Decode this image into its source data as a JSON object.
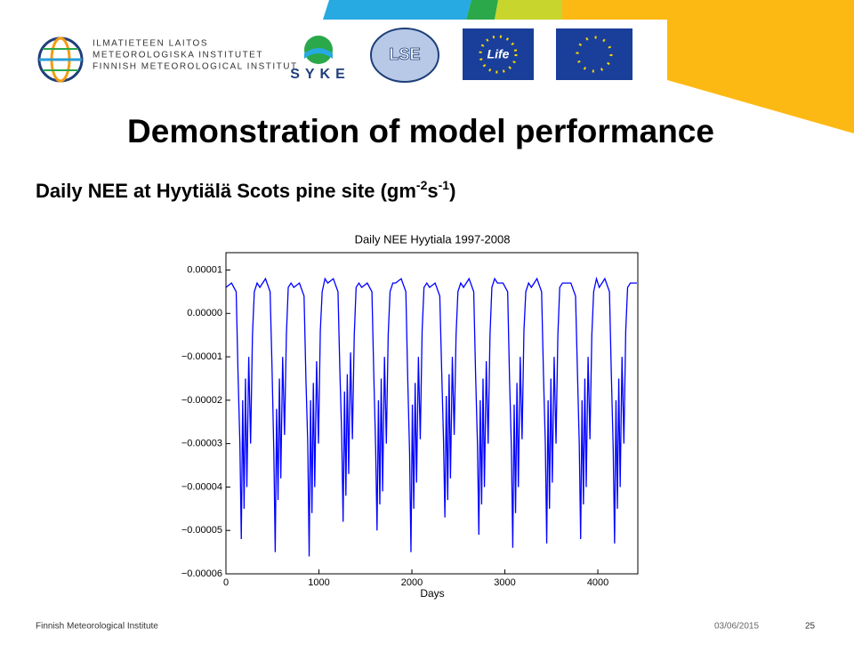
{
  "logos": {
    "fmi": [
      "ILMATIETEEN LAITOS",
      "METEOROLOGISKA INSTITUTET",
      "FINNISH METEOROLOGICAL INSTITUT"
    ],
    "syke": "SYKE",
    "lse": "LSE",
    "life": "Life"
  },
  "title": "Demonstration of model performance",
  "subtitle": {
    "parts": [
      "Daily NEE at Hyytiälä Scots pine site (gm",
      "-2",
      "s",
      "-1",
      ")"
    ]
  },
  "chart_data": {
    "type": "line",
    "title": "Daily NEE Hyytiala 1997-2008",
    "xlabel": "Days",
    "color": "#0000ff",
    "xlim": [
      0,
      4430
    ],
    "xticks": [
      0,
      1000,
      2000,
      3000,
      4000
    ],
    "ylim": [
      -6e-05,
      1.4e-05
    ],
    "yticks": [
      {
        "value": 1e-05,
        "label": "0.00001"
      },
      {
        "value": 0,
        "label": "0.00000"
      },
      {
        "value": -1e-05,
        "label": "−0.00001"
      },
      {
        "value": -2e-05,
        "label": "−0.00002"
      },
      {
        "value": -3e-05,
        "label": "−0.00003"
      },
      {
        "value": -4e-05,
        "label": "−0.00004"
      },
      {
        "value": -5e-05,
        "label": "−0.00005"
      },
      {
        "value": -6e-05,
        "label": "−0.00006"
      }
    ],
    "x": [
      0,
      60,
      110,
      130,
      150,
      165,
      180,
      195,
      210,
      225,
      245,
      265,
      285,
      305,
      335,
      365,
      425,
      475,
      495,
      515,
      530,
      545,
      560,
      575,
      590,
      610,
      630,
      650,
      670,
      700,
      730,
      790,
      840,
      860,
      880,
      895,
      910,
      925,
      940,
      955,
      975,
      995,
      1015,
      1035,
      1065,
      1095,
      1155,
      1205,
      1225,
      1245,
      1260,
      1275,
      1290,
      1305,
      1320,
      1340,
      1360,
      1380,
      1400,
      1430,
      1460,
      1520,
      1570,
      1590,
      1610,
      1625,
      1640,
      1655,
      1670,
      1685,
      1705,
      1725,
      1745,
      1765,
      1795,
      1825,
      1885,
      1935,
      1955,
      1975,
      1990,
      2005,
      2020,
      2035,
      2050,
      2070,
      2090,
      2110,
      2130,
      2160,
      2190,
      2250,
      2300,
      2320,
      2340,
      2355,
      2370,
      2385,
      2400,
      2415,
      2435,
      2455,
      2475,
      2495,
      2525,
      2555,
      2615,
      2665,
      2685,
      2705,
      2720,
      2735,
      2750,
      2765,
      2780,
      2800,
      2820,
      2840,
      2860,
      2890,
      2920,
      2980,
      3030,
      3050,
      3070,
      3085,
      3100,
      3115,
      3130,
      3145,
      3165,
      3185,
      3205,
      3225,
      3255,
      3285,
      3345,
      3395,
      3415,
      3435,
      3450,
      3465,
      3480,
      3495,
      3510,
      3530,
      3550,
      3570,
      3590,
      3620,
      3650,
      3710,
      3760,
      3780,
      3800,
      3815,
      3830,
      3845,
      3860,
      3875,
      3895,
      3915,
      3935,
      3955,
      3985,
      4015,
      4075,
      4125,
      4145,
      4165,
      4180,
      4195,
      4210,
      4225,
      4240,
      4260,
      4280,
      4300,
      4320,
      4350,
      4420
    ],
    "values": [
      6e-06,
      7e-06,
      5e-06,
      -1.4e-05,
      -3e-05,
      -5.2e-05,
      -2e-05,
      -4.5e-05,
      -1.5e-05,
      -4e-05,
      -1e-05,
      -3e-05,
      -5e-06,
      5e-06,
      7e-06,
      6e-06,
      8e-06,
      5e-06,
      -1.2e-05,
      -3.2e-05,
      -5.5e-05,
      -2.2e-05,
      -4.3e-05,
      -1.5e-05,
      -3.8e-05,
      -1e-05,
      -2.8e-05,
      -5e-06,
      6e-06,
      7e-06,
      6e-06,
      7e-06,
      4e-06,
      -1.5e-05,
      -3e-05,
      -5.6e-05,
      -2e-05,
      -4.6e-05,
      -1.6e-05,
      -4e-05,
      -1.1e-05,
      -3e-05,
      -4e-06,
      5e-06,
      8e-06,
      7e-06,
      8e-06,
      5e-06,
      -1.3e-05,
      -2.8e-05,
      -4.8e-05,
      -1.8e-05,
      -4.2e-05,
      -1.4e-05,
      -3.7e-05,
      -9e-06,
      -2.9e-05,
      -5e-06,
      6e-06,
      7e-06,
      6e-06,
      7e-06,
      5e-06,
      -1.4e-05,
      -3.1e-05,
      -5e-05,
      -2e-05,
      -4.4e-05,
      -1.5e-05,
      -4.1e-05,
      -1e-05,
      -3e-05,
      -5e-06,
      5e-06,
      7e-06,
      7e-06,
      8e-06,
      5e-06,
      -1.5e-05,
      -3.2e-05,
      -5.5e-05,
      -2.1e-05,
      -4.5e-05,
      -1.6e-05,
      -3.9e-05,
      -1e-05,
      -2.9e-05,
      -4e-06,
      6e-06,
      7e-06,
      6e-06,
      7e-06,
      4e-06,
      -1.3e-05,
      -2.9e-05,
      -4.7e-05,
      -1.9e-05,
      -4.3e-05,
      -1.4e-05,
      -3.8e-05,
      -1e-05,
      -2.8e-05,
      -5e-06,
      5e-06,
      7e-06,
      6e-06,
      8e-06,
      5e-06,
      -1.4e-05,
      -3e-05,
      -5.1e-05,
      -2e-05,
      -4.4e-05,
      -1.5e-05,
      -4e-05,
      -1.1e-05,
      -3e-05,
      -5e-06,
      6e-06,
      8e-06,
      7e-06,
      7e-06,
      5e-06,
      -1.5e-05,
      -3.1e-05,
      -5.4e-05,
      -2.1e-05,
      -4.6e-05,
      -1.6e-05,
      -4e-05,
      -1e-05,
      -2.9e-05,
      -4e-06,
      5e-06,
      7e-06,
      6e-06,
      8e-06,
      5e-06,
      -1.4e-05,
      -3e-05,
      -5.3e-05,
      -2e-05,
      -4.5e-05,
      -1.5e-05,
      -3.9e-05,
      -1e-05,
      -3e-05,
      -5e-06,
      6e-06,
      7e-06,
      7e-06,
      7e-06,
      4e-06,
      -1.3e-05,
      -3e-05,
      -5.2e-05,
      -2e-05,
      -4.4e-05,
      -1.5e-05,
      -4e-05,
      -1e-05,
      -2.9e-05,
      -5e-06,
      5e-06,
      8e-06,
      6e-06,
      8e-06,
      5e-06,
      -1.4e-05,
      -3.1e-05,
      -5.3e-05,
      -2e-05,
      -4.5e-05,
      -1.5e-05,
      -4e-05,
      -1e-05,
      -3e-05,
      -4e-06,
      6e-06,
      7e-06,
      7e-06
    ]
  },
  "footer": {
    "org": "Finnish Meteorological Institute",
    "date": "03/06/2015",
    "page": "25"
  }
}
